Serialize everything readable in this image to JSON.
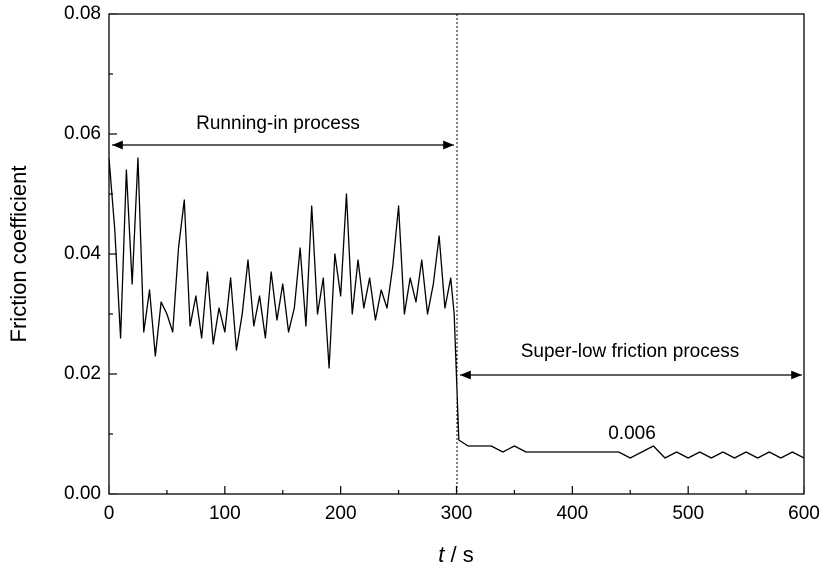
{
  "chart_data": {
    "type": "line",
    "ylabel": "Friction coefficient",
    "xlabel_symbol": "t",
    "xlabel_unit": "/ s",
    "annotations": [
      "Running-in process",
      "Super-low friction process",
      "0.006"
    ],
    "x": [
      0,
      5,
      10,
      15,
      20,
      25,
      30,
      35,
      40,
      45,
      50,
      55,
      60,
      65,
      70,
      75,
      80,
      85,
      90,
      95,
      100,
      105,
      110,
      115,
      120,
      125,
      130,
      135,
      140,
      145,
      150,
      155,
      160,
      165,
      170,
      175,
      180,
      185,
      190,
      195,
      200,
      205,
      210,
      215,
      220,
      225,
      230,
      235,
      240,
      245,
      250,
      255,
      260,
      265,
      270,
      275,
      280,
      285,
      290,
      295,
      298,
      302,
      310,
      320,
      330,
      340,
      350,
      360,
      370,
      380,
      390,
      400,
      410,
      420,
      430,
      440,
      450,
      460,
      470,
      480,
      490,
      500,
      510,
      520,
      530,
      540,
      550,
      560,
      570,
      580,
      590,
      600
    ],
    "series": [
      {
        "name": "Friction coefficient",
        "color": "#000000",
        "values": [
          0.056,
          0.044,
          0.026,
          0.054,
          0.035,
          0.056,
          0.027,
          0.034,
          0.023,
          0.032,
          0.03,
          0.027,
          0.041,
          0.049,
          0.028,
          0.033,
          0.026,
          0.037,
          0.025,
          0.031,
          0.027,
          0.036,
          0.024,
          0.03,
          0.039,
          0.028,
          0.033,
          0.026,
          0.037,
          0.029,
          0.035,
          0.027,
          0.031,
          0.041,
          0.028,
          0.048,
          0.03,
          0.036,
          0.021,
          0.04,
          0.033,
          0.05,
          0.03,
          0.039,
          0.031,
          0.036,
          0.029,
          0.034,
          0.031,
          0.038,
          0.048,
          0.03,
          0.036,
          0.032,
          0.039,
          0.03,
          0.035,
          0.043,
          0.031,
          0.036,
          0.03,
          0.009,
          0.008,
          0.008,
          0.008,
          0.007,
          0.008,
          0.007,
          0.007,
          0.007,
          0.007,
          0.007,
          0.007,
          0.007,
          0.007,
          0.007,
          0.006,
          0.007,
          0.008,
          0.006,
          0.007,
          0.006,
          0.007,
          0.006,
          0.007,
          0.006,
          0.007,
          0.006,
          0.007,
          0.006,
          0.007,
          0.006
        ]
      }
    ],
    "xlim": [
      0,
      600
    ],
    "ylim": [
      0,
      0.08
    ],
    "xticks": [
      0,
      100,
      200,
      300,
      400,
      500,
      600
    ],
    "xminorticks": [
      50,
      150,
      250,
      350,
      450,
      550
    ],
    "yticks": [
      {
        "value": 0,
        "label": "0.00"
      },
      {
        "value": 0.02,
        "label": "0.02"
      },
      {
        "value": 0.04,
        "label": "0.04"
      },
      {
        "value": 0.06,
        "label": "0.06"
      },
      {
        "value": 0.08,
        "label": "0.08"
      }
    ],
    "yminorticks": [
      0.01,
      0.03,
      0.05,
      0.07
    ],
    "grid": false
  }
}
